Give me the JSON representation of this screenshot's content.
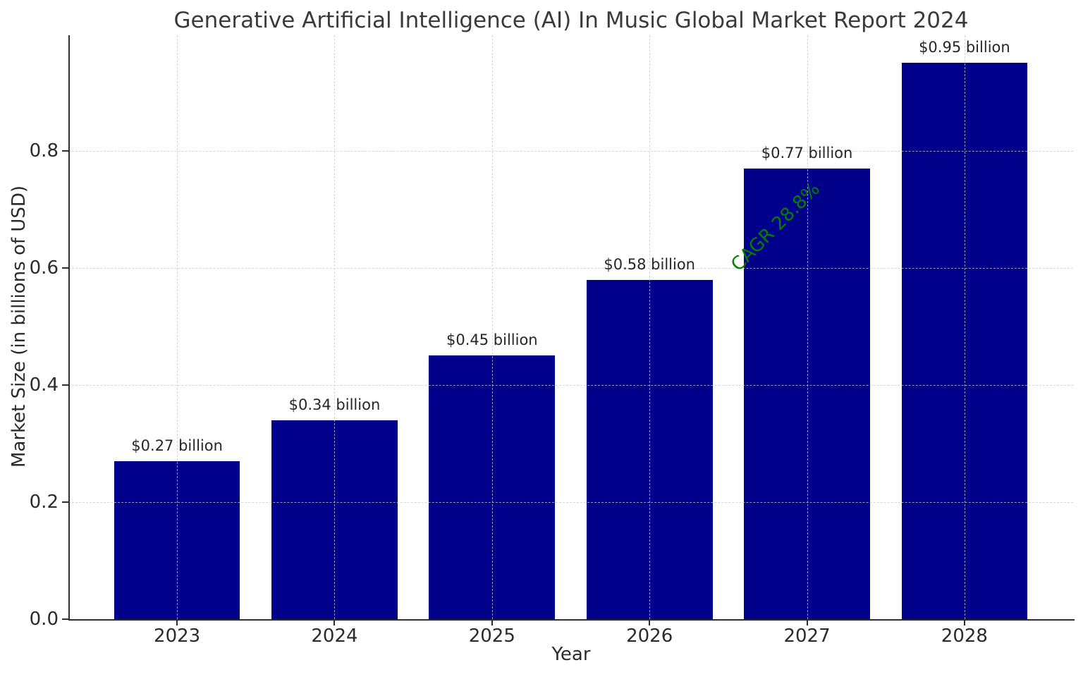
{
  "chart_data": {
    "type": "bar",
    "title": "Generative Artificial Intelligence (AI) In Music Global Market Report 2024",
    "xlabel": "Year",
    "ylabel": "Market Size (in billions of USD)",
    "categories": [
      "2023",
      "2024",
      "2025",
      "2026",
      "2027",
      "2028"
    ],
    "values": [
      0.27,
      0.34,
      0.45,
      0.58,
      0.77,
      0.95
    ],
    "bar_labels": [
      "$0.27 billion",
      "$0.34 billion",
      "$0.45 billion",
      "$0.58 billion",
      "$0.77 billion",
      "$0.95 billion"
    ],
    "yticks": [
      "0.0",
      "0.2",
      "0.4",
      "0.6",
      "0.8"
    ],
    "ytick_values": [
      0.0,
      0.2,
      0.4,
      0.6,
      0.8
    ],
    "ylim": [
      0,
      1.0
    ],
    "grid": true,
    "grid_style": "dashed",
    "grid_above_bars": true,
    "legend": "none",
    "annotation": {
      "text": "CAGR 28.8%",
      "color": "#008000",
      "rotation_deg": -45
    },
    "colors": {
      "bar": "#00008B",
      "grid": "#c8c8c8",
      "axis": "#2e2e2e",
      "text": "#2b2b2b"
    }
  }
}
